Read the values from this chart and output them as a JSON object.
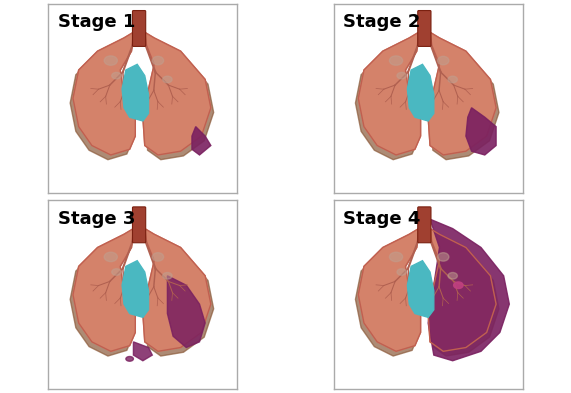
{
  "stages": [
    "Stage 1",
    "Stage 2",
    "Stage 3",
    "Stage 4"
  ],
  "background": "#ffffff",
  "border_color": "#aaaaaa",
  "lung_color": "#d4826a",
  "lung_outline": "#c06050",
  "trachea_color": "#a04030",
  "heart_color": "#4ab8c1",
  "cancer_color": "#7a2060",
  "cancer_outline": "#5a1040",
  "bronchi_color": "#b06050",
  "shadow_color": "#8b5a3a",
  "title_fontsize": 13,
  "title_fontweight": "bold"
}
